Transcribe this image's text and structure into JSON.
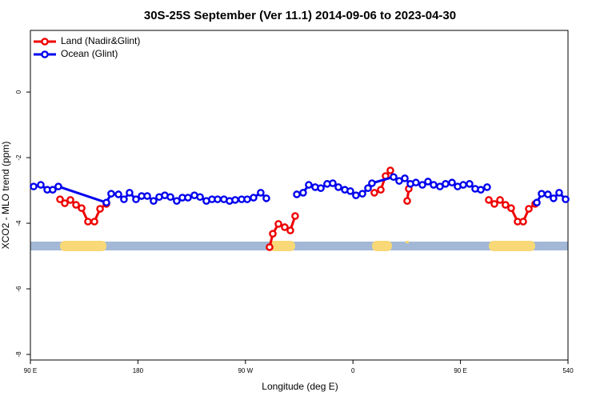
{
  "chart_data": {
    "type": "line",
    "title": "30S-25S September (Ver 11.1)   2014-09-06 to 2023-04-30",
    "xlabel": "Longitude (deg E)",
    "ylabel": "XCO2 - MLO trend (ppm)",
    "xlim": [
      90,
      540
    ],
    "ylim": [
      -8.17,
      1.88
    ],
    "xticks": [
      {
        "value": 90,
        "label": "90 E"
      },
      180,
      {
        "value": 270,
        "label": "90 W"
      },
      {
        "value": 360,
        "label": "0"
      },
      {
        "value": 450,
        "label": "90 E"
      },
      540
    ],
    "yticks": [
      0,
      -2,
      -4,
      -6,
      -8
    ],
    "legend": "top-left",
    "series": [
      {
        "name": "Land (Nadir&Glint)",
        "color": "#ee0000",
        "x": [
          114.8,
          118.8,
          123.5,
          128.2,
          132.9,
          138.2,
          143.6,
          148.3,
          153.6,
          null,
          290.2,
          292.9,
          297.6,
          302.9,
          307.6,
          311.6,
          null,
          377.9,
          383.3,
          387.3,
          391.3,
          null,
          405.4,
          406.7,
          null,
          473.7,
          478.4,
          483.1,
          487.7,
          492.4,
          497.8,
          502.5,
          507.2,
          512.5
        ],
        "values": [
          -3.27,
          -3.39,
          -3.29,
          -3.44,
          -3.54,
          -3.95,
          -3.95,
          -3.56,
          -3.41,
          null,
          -4.73,
          -4.32,
          -4.02,
          -4.12,
          -4.22,
          -3.78,
          null,
          -3.07,
          -2.98,
          -2.56,
          -2.39,
          null,
          -3.32,
          -2.95,
          null,
          -3.29,
          -3.41,
          -3.29,
          -3.44,
          -3.54,
          -3.95,
          -3.95,
          -3.56,
          -3.41
        ]
      },
      {
        "name": "Ocean (Glint)",
        "color": "#0000ee",
        "x": [
          92.7,
          98.7,
          104.1,
          108.7,
          113.4,
          153.6,
          157.6,
          163.7,
          168.3,
          173.0,
          178.4,
          183.1,
          187.8,
          193.1,
          197.8,
          202.5,
          207.2,
          212.5,
          217.2,
          221.9,
          227.3,
          232.0,
          237.3,
          242.0,
          246.7,
          252.0,
          256.7,
          261.4,
          266.8,
          271.5,
          276.8,
          282.8,
          287.5,
          null,
          313.0,
          318.3,
          323.0,
          328.4,
          333.1,
          338.4,
          343.1,
          347.8,
          353.2,
          357.8,
          362.5,
          367.9,
          372.6,
          375.9,
          394.0,
          398.7,
          403.4,
          408.1,
          412.7,
          418.1,
          422.8,
          427.5,
          432.8,
          437.5,
          442.9,
          447.6,
          452.3,
          457.6,
          462.3,
          467.0,
          472.3,
          null,
          513.9,
          517.9,
          523.2,
          527.9,
          532.6,
          538.0
        ],
        "values": [
          -2.88,
          -2.83,
          -2.98,
          -2.98,
          -2.88,
          -3.37,
          -3.1,
          -3.12,
          -3.27,
          -3.07,
          -3.27,
          -3.17,
          -3.17,
          -3.32,
          -3.2,
          -3.15,
          -3.2,
          -3.32,
          -3.22,
          -3.22,
          -3.15,
          -3.2,
          -3.32,
          -3.27,
          -3.27,
          -3.27,
          -3.32,
          -3.29,
          -3.27,
          -3.27,
          -3.22,
          -3.07,
          -3.24,
          null,
          -3.12,
          -3.07,
          -2.83,
          -2.9,
          -2.93,
          -2.8,
          -2.78,
          -2.9,
          -2.98,
          -3.02,
          -3.15,
          -3.1,
          -2.93,
          -2.78,
          -2.59,
          -2.71,
          -2.63,
          -2.8,
          -2.76,
          -2.83,
          -2.73,
          -2.83,
          -2.88,
          -2.8,
          -2.76,
          -2.88,
          -2.83,
          -2.8,
          -2.95,
          -2.98,
          -2.9,
          null,
          -3.37,
          -3.1,
          -3.12,
          -3.24,
          -3.07,
          -3.27
        ]
      }
    ]
  }
}
